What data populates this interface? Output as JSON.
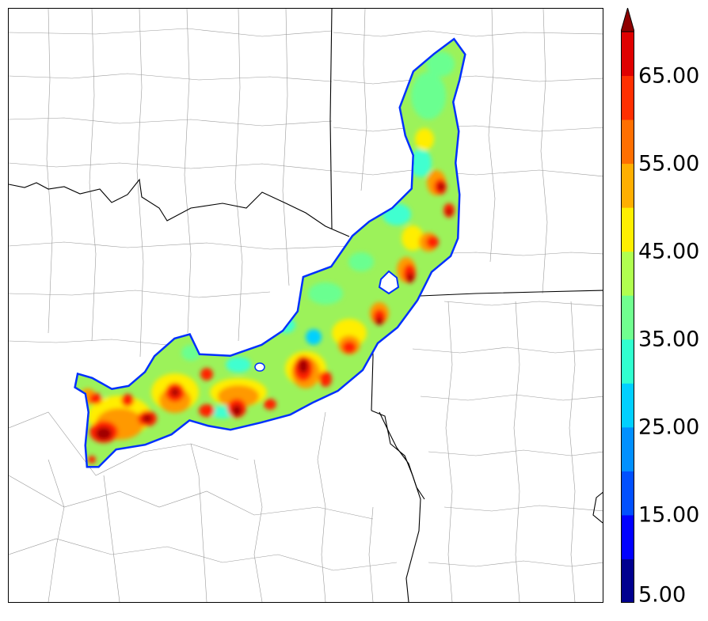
{
  "colorbar": {
    "levels": [
      5,
      10,
      15,
      20,
      25,
      30,
      35,
      40,
      45,
      50,
      55,
      60,
      65,
      70
    ],
    "colors": [
      "#00008f",
      "#0000ff",
      "#0050ff",
      "#0090ff",
      "#00d0ff",
      "#30ffcf",
      "#70ff8f",
      "#b0ff4f",
      "#ffef00",
      "#ffaf00",
      "#ff6f00",
      "#ff2f00",
      "#df0000",
      "#8f0000"
    ],
    "extend": "max",
    "tick_labels": [
      "5.00",
      "15.00",
      "25.00",
      "35.00",
      "45.00",
      "55.00",
      "65.00"
    ]
  },
  "map": {
    "basemap": "county and state boundary lines",
    "field_colors": {
      "edge": "#0030ff",
      "base": "#9cf25a",
      "cyan": "#3fffd0",
      "green": "#6bff90",
      "yellow": "#ffee00",
      "orange": "#ff9900",
      "red": "#ff2200",
      "core": "#a00000"
    }
  }
}
